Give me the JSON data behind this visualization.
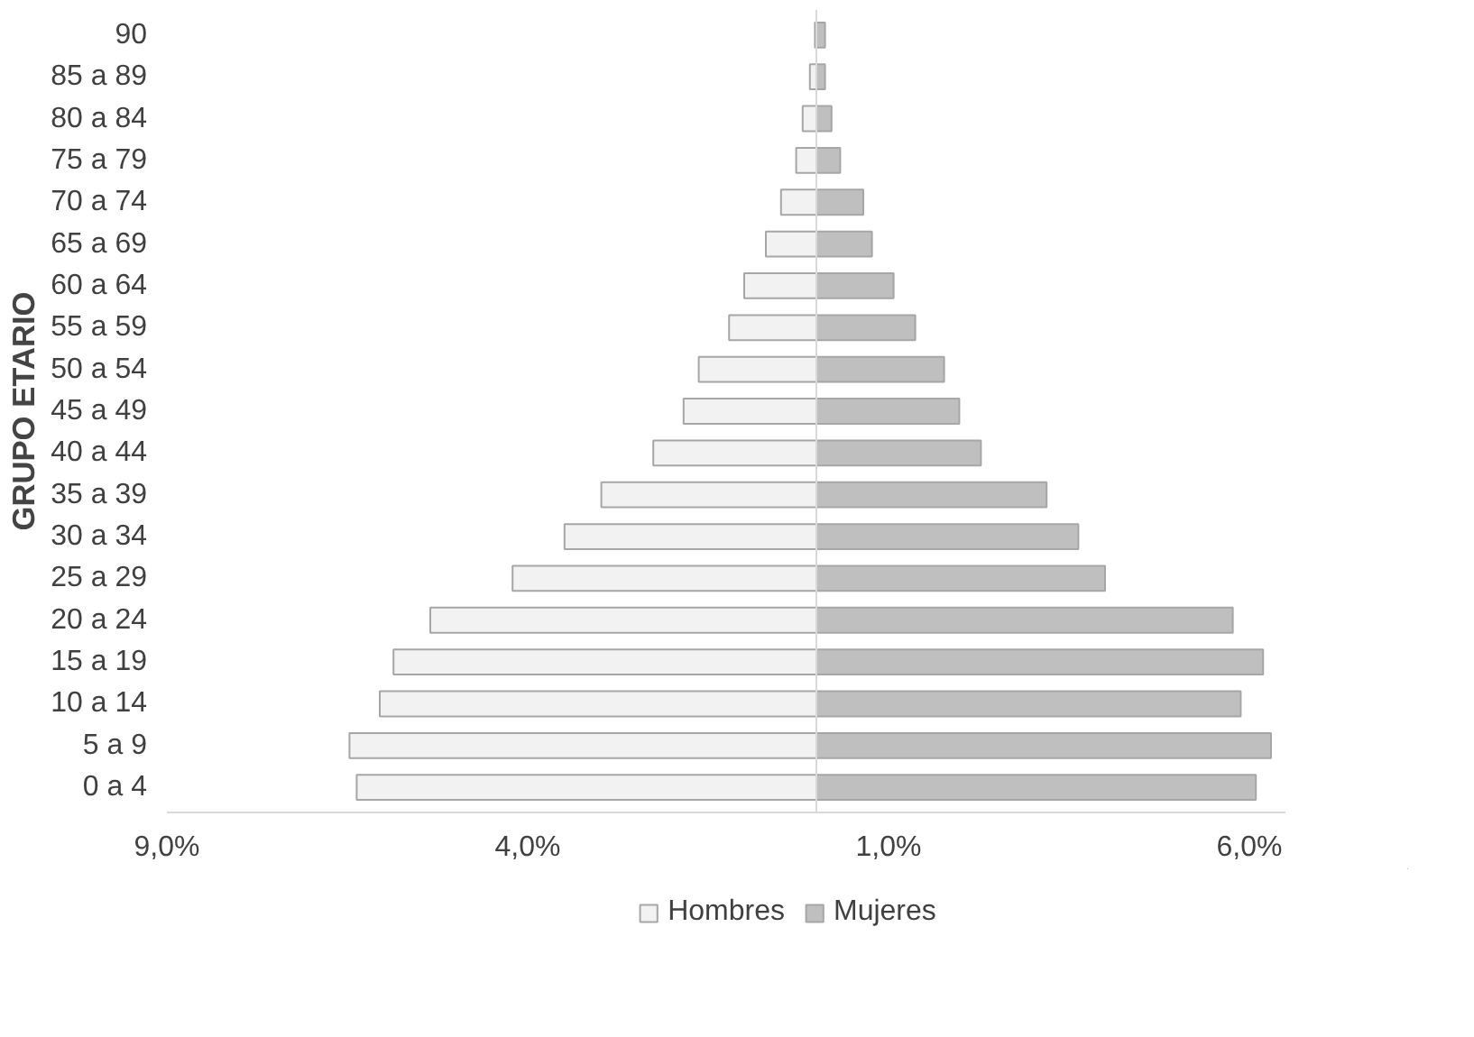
{
  "chart_data": {
    "type": "bar",
    "orientation": "horizontal",
    "ylabel": "GRUPO ETARIO",
    "categories": [
      "90",
      "85 a 89",
      "80 a 84",
      "75 a 79",
      "70 a 74",
      "65 a 69",
      "60 a 64",
      "55 a 59",
      "50 a 54",
      "45 a 49",
      "40 a 44",
      "35 a 39",
      "30 a 34",
      "25 a 29",
      "20 a 24",
      "15 a 19",
      "10 a 14",
      "5 a 9",
      "0 a 4"
    ],
    "series": [
      {
        "name": "Hombres",
        "color": "#f2f2f2",
        "values": [
          -0.02,
          -0.09,
          -0.19,
          -0.28,
          -0.49,
          -0.7,
          -1.0,
          -1.21,
          -1.63,
          -1.84,
          -2.26,
          -2.98,
          -3.49,
          -4.21,
          -5.35,
          -5.86,
          -6.05,
          -6.47,
          -6.37
        ]
      },
      {
        "name": "Mujeres",
        "color": "#bfbfbf",
        "values": [
          0.12,
          0.12,
          0.21,
          0.33,
          0.65,
          0.77,
          1.07,
          1.37,
          1.77,
          1.98,
          2.28,
          3.19,
          3.63,
          4.0,
          5.77,
          6.19,
          5.88,
          6.3,
          6.09
        ]
      }
    ],
    "xlim": [
      -9,
      6.5
    ],
    "xticks": [
      {
        "value": -9,
        "label": "9,0%"
      },
      {
        "value": -4,
        "label": "4,0%"
      },
      {
        "value": 1,
        "label": "1,0%"
      },
      {
        "value": 6,
        "label": "6,0%"
      }
    ],
    "ref_lines": [
      {
        "axis": "x",
        "value": 0,
        "color": "#d9d9d9"
      }
    ],
    "stacked": true,
    "legend": "bottom",
    "grid": false
  }
}
